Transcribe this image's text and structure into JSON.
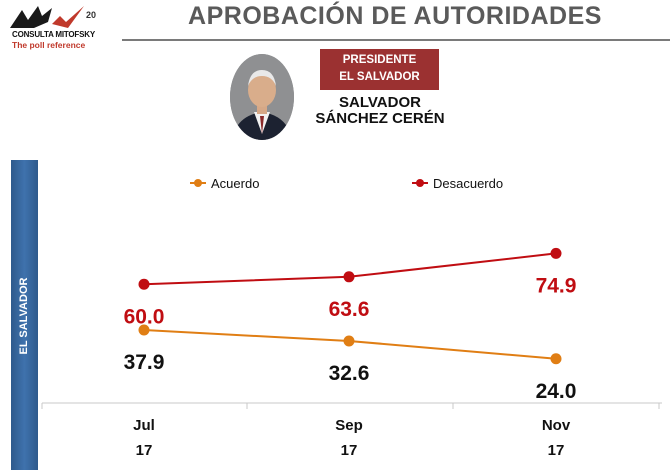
{
  "header": {
    "title": "APROBACIÓN DE AUTORIDADES",
    "logo_name": "CONSULTA MITOFSKY",
    "logo_tagline": "The poll reference",
    "logo_anniversary": "20"
  },
  "badge": {
    "line1": "PRESIDENTE",
    "line2": "EL SALVADOR"
  },
  "person": {
    "line1": "SALVADOR",
    "line2": "SÁNCHEZ CERÉN"
  },
  "sidebar_label": "EL SALVADOR",
  "colors": {
    "acuerdo": "#e07e14",
    "desacuerdo": "#c00d12",
    "badge": "#9b3131",
    "sidebar": "#3a6aa3"
  },
  "chart_data": {
    "type": "line",
    "categories": [
      "Jul",
      "Sep",
      "Nov"
    ],
    "category_years": [
      "17",
      "17",
      "17"
    ],
    "series": [
      {
        "name": "Acuerdo",
        "values": [
          37.9,
          32.6,
          24.0
        ],
        "labels": [
          "37.9",
          "32.6",
          "24.0"
        ]
      },
      {
        "name": "Desacuerdo",
        "values": [
          60.0,
          63.6,
          74.9
        ],
        "labels": [
          "60.0",
          "63.6",
          "74.9"
        ]
      }
    ],
    "legend_position": "top",
    "grid": false
  }
}
